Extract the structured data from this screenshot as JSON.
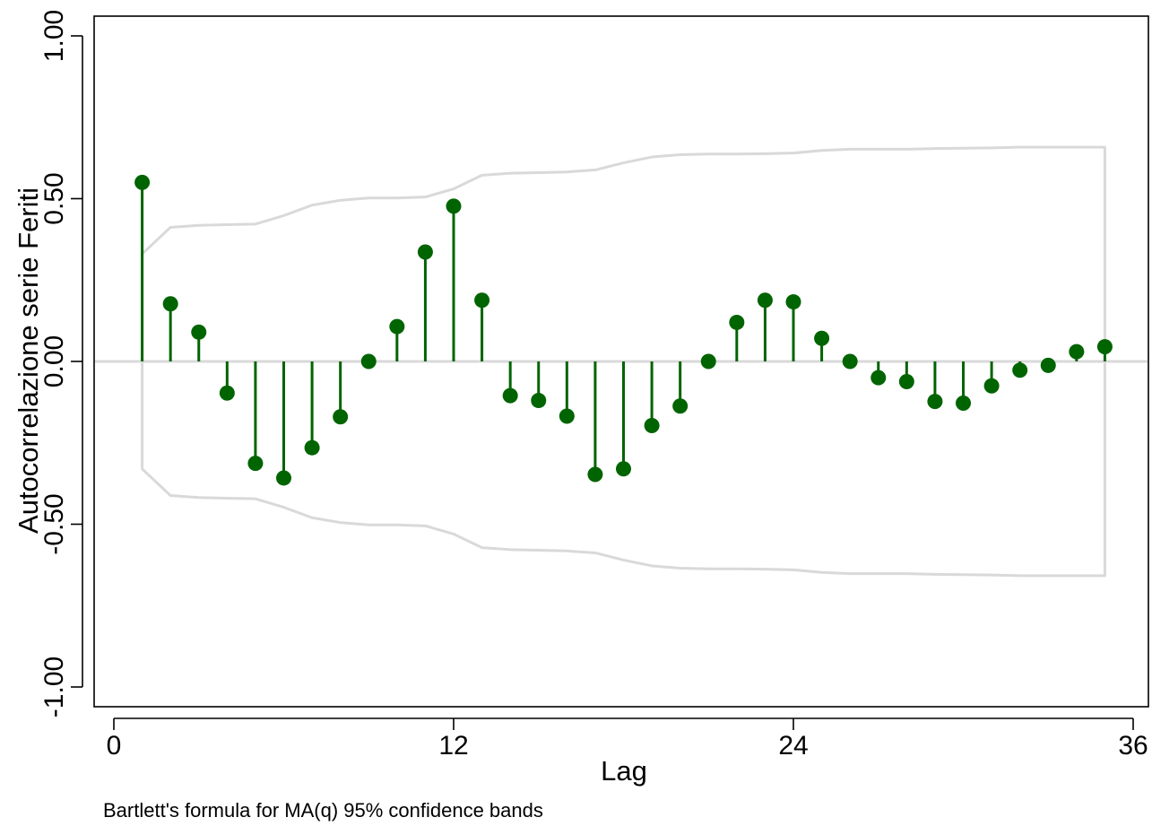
{
  "chart_data": {
    "type": "scatter",
    "subtype": "acf-stem",
    "xlabel": "Lag",
    "ylabel": "Autocorrelazione serie Feriti",
    "note": "Bartlett's formula for MA(q) 95% confidence bands",
    "xlim": [
      0,
      36
    ],
    "ylim": [
      -1.0,
      1.0
    ],
    "x_ticks": [
      {
        "value": 0,
        "label": "0"
      },
      {
        "value": 12,
        "label": "12"
      },
      {
        "value": 24,
        "label": "24"
      },
      {
        "value": 36,
        "label": "36"
      }
    ],
    "y_ticks": [
      {
        "value": -1.0,
        "label": "-1.00"
      },
      {
        "value": -0.5,
        "label": "-0.50"
      },
      {
        "value": 0.0,
        "label": "0.00"
      },
      {
        "value": 0.5,
        "label": "0.50"
      },
      {
        "value": 1.0,
        "label": "1.00"
      }
    ],
    "grid": false,
    "zero_line": true,
    "colors": {
      "stem": "#006400",
      "band": "#d9d9d9",
      "zero_line": "#d9d9d9",
      "axis": "#000000"
    },
    "lags": [
      1,
      2,
      3,
      4,
      5,
      6,
      7,
      8,
      9,
      10,
      11,
      12,
      13,
      14,
      15,
      16,
      17,
      18,
      19,
      20,
      21,
      22,
      23,
      24,
      25,
      26,
      27,
      28,
      29,
      30,
      31,
      32,
      33,
      34,
      35
    ],
    "acf": [
      0.55,
      0.177,
      0.09,
      -0.097,
      -0.313,
      -0.358,
      -0.265,
      -0.17,
      0.0,
      0.107,
      0.336,
      0.477,
      0.188,
      -0.105,
      -0.12,
      -0.168,
      -0.347,
      -0.33,
      -0.197,
      -0.137,
      0.0,
      0.12,
      0.188,
      0.183,
      0.071,
      0.0,
      -0.05,
      -0.062,
      -0.123,
      -0.128,
      -0.075,
      -0.027,
      -0.012,
      0.03,
      0.045
    ],
    "band_upper": [
      0.33,
      0.412,
      0.418,
      0.42,
      0.422,
      0.448,
      0.48,
      0.495,
      0.502,
      0.502,
      0.505,
      0.53,
      0.572,
      0.578,
      0.58,
      0.582,
      0.588,
      0.61,
      0.628,
      0.635,
      0.637,
      0.637,
      0.638,
      0.64,
      0.648,
      0.652,
      0.652,
      0.652,
      0.654,
      0.655,
      0.656,
      0.658,
      0.658,
      0.658,
      0.658
    ]
  }
}
